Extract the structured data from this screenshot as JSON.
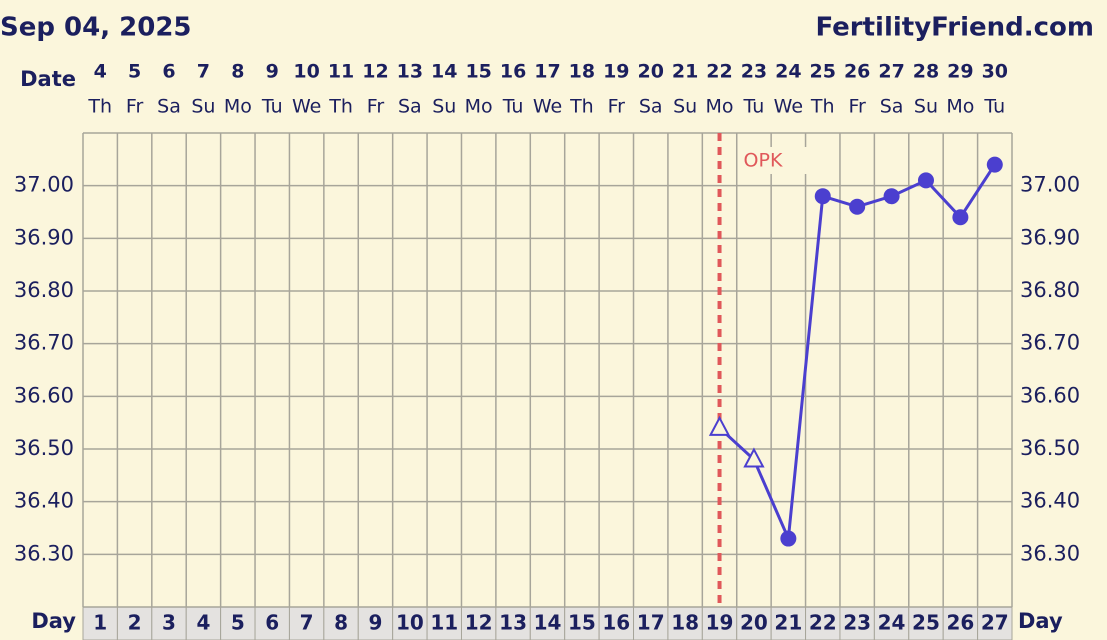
{
  "chart_data": {
    "type": "line",
    "title": "Sep 04, 2025",
    "brand": "FertilityFriend.com",
    "date_label": "Date",
    "day_label": "Day",
    "dates": [
      "4",
      "5",
      "6",
      "7",
      "8",
      "9",
      "10",
      "11",
      "12",
      "13",
      "14",
      "15",
      "16",
      "17",
      "18",
      "19",
      "20",
      "21",
      "22",
      "23",
      "24",
      "25",
      "26",
      "27",
      "28",
      "29",
      "30"
    ],
    "weekdays": [
      "Th",
      "Fr",
      "Sa",
      "Su",
      "Mo",
      "Tu",
      "We",
      "Th",
      "Fr",
      "Sa",
      "Su",
      "Mo",
      "Tu",
      "We",
      "Th",
      "Fr",
      "Sa",
      "Su",
      "Mo",
      "Tu",
      "We",
      "Th",
      "Fr",
      "Sa",
      "Su",
      "Mo",
      "Tu"
    ],
    "categories": [
      "1",
      "2",
      "3",
      "4",
      "5",
      "6",
      "7",
      "8",
      "9",
      "10",
      "11",
      "12",
      "13",
      "14",
      "15",
      "16",
      "17",
      "18",
      "19",
      "20",
      "21",
      "22",
      "23",
      "24",
      "25",
      "26",
      "27"
    ],
    "series": [
      {
        "color": "#4b3fcf",
        "values": [
          null,
          null,
          null,
          null,
          null,
          null,
          null,
          null,
          null,
          null,
          null,
          null,
          null,
          null,
          null,
          null,
          null,
          null,
          36.54,
          36.48,
          36.33,
          36.98,
          36.96,
          36.98,
          37.01,
          36.94,
          37.04
        ],
        "markers": [
          null,
          null,
          null,
          null,
          null,
          null,
          null,
          null,
          null,
          null,
          null,
          null,
          null,
          null,
          null,
          null,
          null,
          null,
          "triangle",
          "triangle",
          "circle",
          "circle",
          "circle",
          "circle",
          "circle",
          "circle",
          "circle"
        ]
      }
    ],
    "annotations": [
      {
        "label": "OPK",
        "x": "19",
        "color": "#e0585a"
      }
    ],
    "ylim": [
      36.2,
      37.1
    ],
    "yticks": [
      {
        "value": 36.3,
        "label": "36.30"
      },
      {
        "value": 36.4,
        "label": "36.40"
      },
      {
        "value": 36.5,
        "label": "36.50"
      },
      {
        "value": 36.6,
        "label": "36.60"
      },
      {
        "value": 36.7,
        "label": "36.70"
      },
      {
        "value": 36.8,
        "label": "36.80"
      },
      {
        "value": 36.9,
        "label": "36.90"
      },
      {
        "value": 37.0,
        "label": "37.00"
      }
    ],
    "grid": true
  }
}
